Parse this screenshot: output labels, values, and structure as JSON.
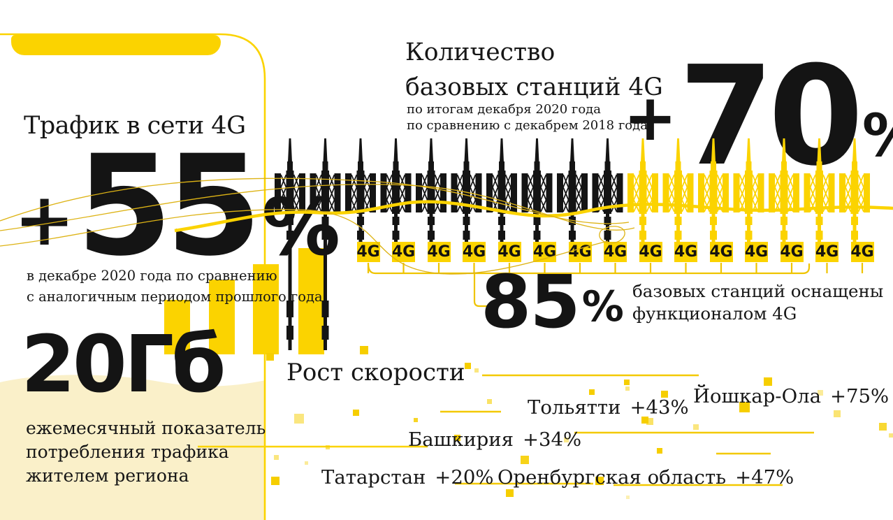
{
  "traffic_card": {
    "title": "Трафик в сети 4G",
    "value_plus": "+",
    "value_number": "55",
    "value_percent": "%",
    "caption": "в декабре 2020 года по сравнению\nс аналогичным периодом прошлого года",
    "volume_value": "20Гб",
    "volume_caption": "ежемесячный показатель\nпотребления трафика\nжителем региона"
  },
  "stations": {
    "title": "Количество\nбазовых станций 4G",
    "subtitle": "по итогам декабря 2020 года\nпо сравнению с декабрем 2018 года",
    "value_plus": "+",
    "value_number": "70",
    "value_percent": "%",
    "black_towers": 10,
    "yellow_towers": 7,
    "badge_label": "4G",
    "equipped_number": "85",
    "equipped_percent": "%",
    "equipped_caption": "базовых станций оснащены\nфункционалом 4G"
  },
  "speed": {
    "title": "Рост скорости",
    "items": [
      {
        "label": "Тольятти",
        "value": "+43%"
      },
      {
        "label": "Йошкар-Ола",
        "value": "+75%"
      },
      {
        "label": "Башкирия",
        "value": "+34%"
      },
      {
        "label": "Татарстан",
        "value": "+20%"
      },
      {
        "label": "Оренбургская область",
        "value": "+47%"
      }
    ]
  },
  "colors": {
    "yellow": "#FBD300",
    "yellow_line": "#EFC400",
    "pale_yellow": "#FAF0C9",
    "ink": "#141414"
  },
  "chart_data": [
    {
      "type": "bar",
      "name": "traffic-growth-bars",
      "title": "Трафик в сети 4G",
      "annotation": "+55% в декабре 2020 года по сравнению с аналогичным периодом прошлого года; 20Гб — ежемесячный показатель потребления трафика жителем региона",
      "values": [
        78,
        107,
        129,
        152
      ],
      "unit": "relative-height"
    },
    {
      "type": "pictogram",
      "name": "base-stations",
      "title": "Количество базовых станций 4G",
      "annotation": "+70% по итогам декабря 2020 года по сравнению с декабрем 2018 года; 85% базовых станций оснащены функционалом 4G",
      "black_towers": 10,
      "yellow_towers": 7,
      "towers_with_4g_badge": 15
    },
    {
      "type": "bar",
      "name": "speed-growth",
      "title": "Рост скорости",
      "categories": [
        "Татарстан",
        "Башкирия",
        "Тольятти",
        "Оренбургская область",
        "Йошкар-Ола"
      ],
      "values": [
        20,
        34,
        43,
        47,
        75
      ],
      "unit": "%"
    }
  ]
}
